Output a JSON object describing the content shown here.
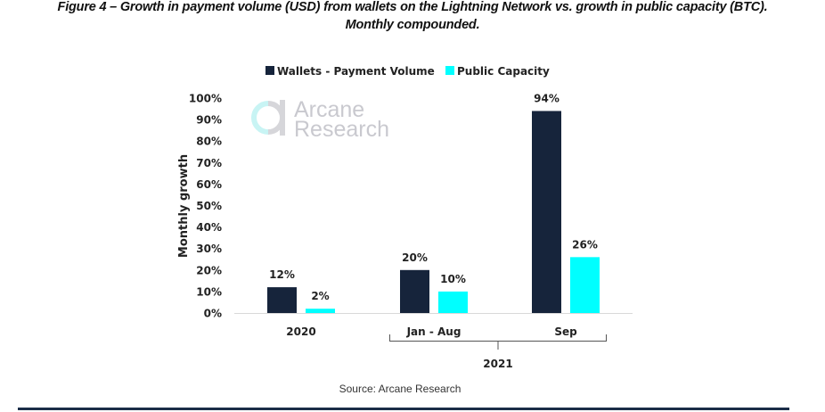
{
  "figure": {
    "title_line1": "Figure 4 – Growth in payment volume (USD) from wallets on the Lightning Network vs. growth in public capacity (BTC).",
    "title_line2": "Monthly compounded.",
    "source": "Source: Arcane Research",
    "watermark_line1": "Arcane",
    "watermark_line2": "Research",
    "colors": {
      "wallets": "#16243b",
      "capacity": "#00ffff",
      "rule": "#1b2d48"
    }
  },
  "chart_data": {
    "type": "bar",
    "title": "Growth in payment volume (USD) from wallets on the Lightning Network vs. growth in public capacity (BTC). Monthly compounded.",
    "xlabel": "",
    "ylabel": "Monthly growth",
    "ylim": [
      0,
      100
    ],
    "yticks": [
      "0%",
      "10%",
      "20%",
      "30%",
      "40%",
      "50%",
      "60%",
      "70%",
      "80%",
      "90%",
      "100%"
    ],
    "ytick_values": [
      0,
      10,
      20,
      30,
      40,
      50,
      60,
      70,
      80,
      90,
      100
    ],
    "categories": [
      "2020",
      "Jan - Aug",
      "Sep"
    ],
    "category_group": {
      "label": "2021",
      "members": [
        "Jan - Aug",
        "Sep"
      ]
    },
    "series": [
      {
        "name": "Wallets - Payment Volume",
        "values": [
          12,
          20,
          94
        ],
        "labels": [
          "12%",
          "20%",
          "94%"
        ],
        "color": "#16243b"
      },
      {
        "name": "Public Capacity",
        "values": [
          2,
          10,
          26
        ],
        "labels": [
          "2%",
          "10%",
          "26%"
        ],
        "color": "#00ffff"
      }
    ],
    "legend": "top",
    "grid": false
  }
}
